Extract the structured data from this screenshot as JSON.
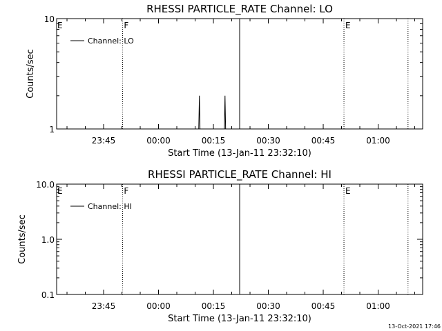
{
  "stamp": "13-Oct-2021 17:46",
  "chart_data": [
    {
      "type": "line",
      "title": "RHESSI PARTICLE_RATE Channel: LO",
      "xlabel": "Start Time (13-Jan-11 23:32:10)",
      "ylabel": "Counts/sec",
      "yscale": "log",
      "ylim": [
        1,
        10
      ],
      "ytick_labels": [
        "1",
        "10"
      ],
      "xlim": [
        "23:32:10",
        "01:12:10"
      ],
      "xtick_labels": [
        "23:45",
        "00:00",
        "00:15",
        "00:30",
        "00:45",
        "01:00"
      ],
      "legend": {
        "position": "top-left",
        "label": "Channel: LO"
      },
      "series": [
        {
          "name": "Channel: LO",
          "x": [
            "00:10:40",
            "00:11:00",
            "00:11:10",
            "00:11:20",
            "00:11:40",
            "00:17:40",
            "00:18:00",
            "00:18:10",
            "00:18:20",
            "00:18:40"
          ],
          "y": [
            1,
            1,
            2,
            1,
            1,
            1,
            1,
            2,
            1,
            1
          ]
        }
      ],
      "vlines": [
        {
          "x": "23:50:10",
          "style": "dotted",
          "label": "F"
        },
        {
          "x": "00:22:10",
          "style": "solid",
          "label": ""
        },
        {
          "x": "00:50:40",
          "style": "dotted",
          "label": "E"
        },
        {
          "x": "01:08:10",
          "style": "dotted",
          "label": ""
        }
      ],
      "edge_label": "E"
    },
    {
      "type": "line",
      "title": "RHESSI PARTICLE_RATE Channel: HI",
      "xlabel": "Start Time (13-Jan-11 23:32:10)",
      "ylabel": "Counts/sec",
      "yscale": "log",
      "ylim": [
        0.1,
        10
      ],
      "ytick_labels": [
        "0.1",
        "1.0",
        "10.0"
      ],
      "xlim": [
        "23:32:10",
        "01:12:10"
      ],
      "xtick_labels": [
        "23:45",
        "00:00",
        "00:15",
        "00:30",
        "00:45",
        "01:00"
      ],
      "legend": {
        "position": "top-left",
        "label": "Channel: HI"
      },
      "series": [],
      "vlines": [
        {
          "x": "23:50:10",
          "style": "dotted",
          "label": "F"
        },
        {
          "x": "00:22:10",
          "style": "solid",
          "label": ""
        },
        {
          "x": "00:50:40",
          "style": "dotted",
          "label": "E"
        },
        {
          "x": "01:08:10",
          "style": "dotted",
          "label": ""
        }
      ],
      "edge_label": "E"
    }
  ]
}
